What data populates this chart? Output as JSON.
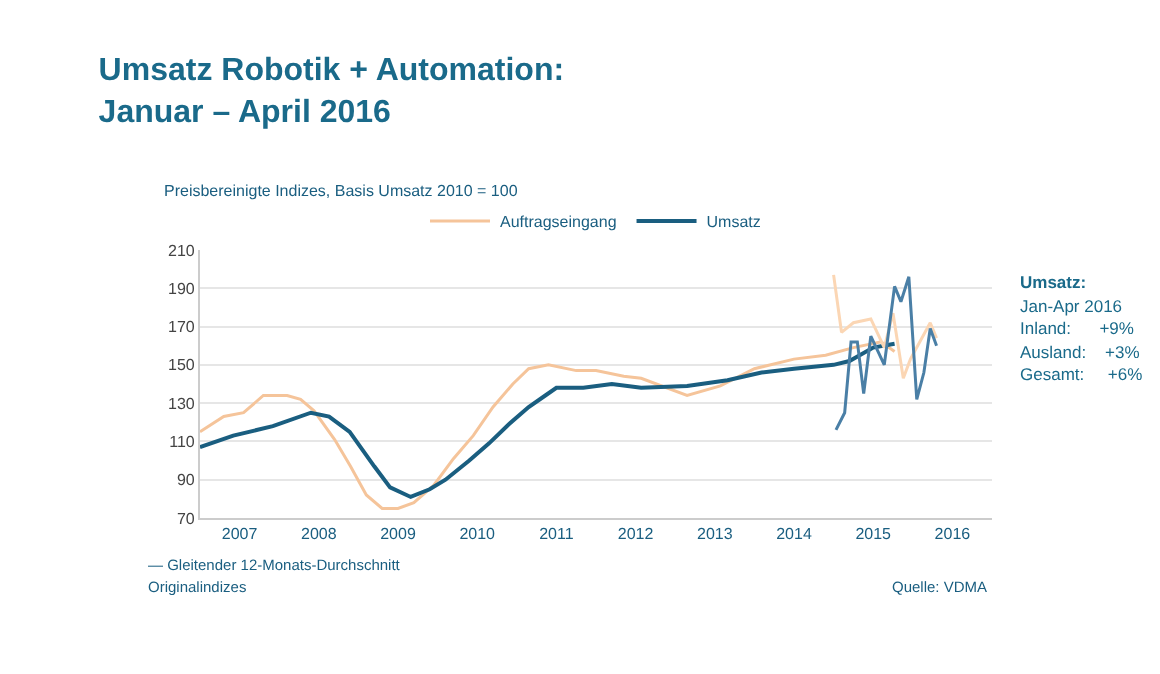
{
  "chart_data": {
    "type": "line",
    "title": "Umsatz Robotik + Automation:\nJanuar – April 2016",
    "subtitle": "Preisbereinigte Indizes, Basis Umsatz 2010 = 100",
    "series": [
      {
        "name": "Auftragseingang",
        "color": "#f5c49a",
        "x": [
          2007.0,
          2007.3,
          2007.55,
          2007.8,
          2008.1,
          2008.27,
          2008.44,
          2008.7,
          2008.9,
          2009.1,
          2009.3,
          2009.5,
          2009.7,
          2009.95,
          2010.2,
          2010.45,
          2010.7,
          2010.95,
          2011.15,
          2011.4,
          2011.75,
          2012.0,
          2012.35,
          2012.57,
          2013.15,
          2013.57,
          2014.0,
          2014.5,
          2014.9,
          2015.25,
          2015.6,
          2015.77
        ],
        "values": [
          115,
          123,
          125,
          134,
          134,
          132,
          126,
          111,
          97,
          82,
          75,
          75,
          78,
          87,
          101,
          113,
          128,
          140,
          148,
          150,
          147,
          147,
          144,
          143,
          134,
          139,
          148,
          153,
          155,
          159,
          162,
          157
        ]
      },
      {
        "name": "Umsatz",
        "color": "#1a5e80",
        "x": [
          2007.0,
          2007.42,
          2007.92,
          2008.4,
          2008.63,
          2008.89,
          2009.2,
          2009.4,
          2009.66,
          2009.9,
          2010.1,
          2010.4,
          2010.65,
          2010.9,
          2011.15,
          2011.36,
          2011.5,
          2011.84,
          2012.2,
          2012.57,
          2013.15,
          2013.66,
          2014.09,
          2014.5,
          2015.0,
          2015.2,
          2015.5,
          2015.77
        ],
        "values": [
          107,
          113,
          118,
          125,
          123,
          115,
          97,
          86,
          81,
          85,
          90,
          100,
          109,
          119,
          128,
          134,
          138,
          138,
          140,
          138,
          139,
          142,
          146,
          148,
          150,
          152,
          159,
          161
        ]
      },
      {
        "color": "#fbd6b4",
        "x": [
          2015.0,
          2015.1,
          2015.25,
          2015.47,
          2015.64,
          2015.75,
          2015.88,
          2015.97,
          2016.22,
          2016.3
        ],
        "values": [
          197,
          167,
          172,
          174,
          159,
          177,
          143,
          153,
          172,
          164
        ]
      },
      {
        "color": "#4a7fa6",
        "x": [
          2015.03,
          2015.14,
          2015.22,
          2015.3,
          2015.38,
          2015.47,
          2015.64,
          2015.77,
          2015.85,
          2015.95,
          2016.05,
          2016.14,
          2016.22,
          2016.3
        ],
        "values": [
          116,
          125,
          162,
          162,
          135,
          165,
          150,
          191,
          183,
          196,
          132,
          146,
          169,
          160
        ]
      }
    ],
    "xlim": [
      2007,
      2017
    ],
    "xticks": [
      {
        "value": 2007.5,
        "label": "2007"
      },
      {
        "value": 2008.5,
        "label": "2008"
      },
      {
        "value": 2009.5,
        "label": "2009"
      },
      {
        "value": 2010.5,
        "label": "2010"
      },
      {
        "value": 2011.5,
        "label": "2011"
      },
      {
        "value": 2012.5,
        "label": "2012"
      },
      {
        "value": 2013.5,
        "label": "2013"
      },
      {
        "value": 2014.5,
        "label": "2014"
      },
      {
        "value": 2015.5,
        "label": "2015"
      },
      {
        "value": 2016.5,
        "label": "2016"
      }
    ],
    "ylim": [
      70,
      210
    ],
    "yticks": [
      70,
      90,
      110,
      130,
      150,
      170,
      190,
      210
    ],
    "grid": "y",
    "legend": "top",
    "marker": "none",
    "line_style": "solid",
    "annotations": [
      "Umsatz:",
      "Jan-Apr 2016",
      "Inland:      +9%",
      "Ausland:    +3%",
      "Gesamt:     +6%",
      "— Gleitender 12-Monats-Durchschnitt",
      "Originalindizes",
      "Quelle: VDMA"
    ]
  }
}
